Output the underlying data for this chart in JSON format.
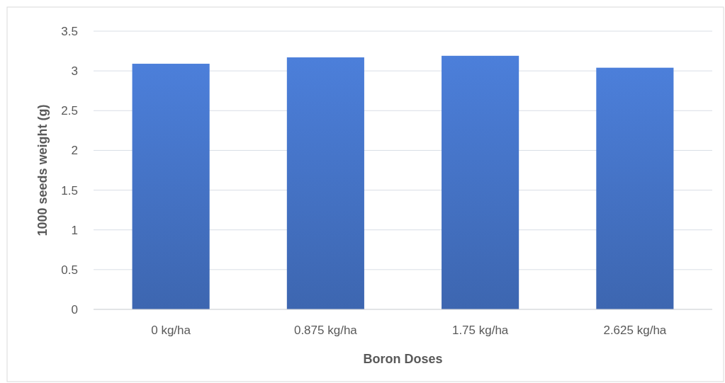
{
  "chart_data": {
    "type": "bar",
    "xlabel": "Boron Doses",
    "ylabel": "1000 seeds weight (g)",
    "categories": [
      "0 kg/ha",
      "0.875 kg/ha",
      "1.75 kg/ha",
      "2.625 kg/ha"
    ],
    "values": [
      3.09,
      3.17,
      3.19,
      3.04
    ],
    "color": "#4472c4",
    "ylim": [
      0,
      3.5
    ],
    "yticks": [
      0,
      0.5,
      1,
      1.5,
      2,
      2.5,
      3,
      3.5
    ],
    "grid": "y"
  }
}
